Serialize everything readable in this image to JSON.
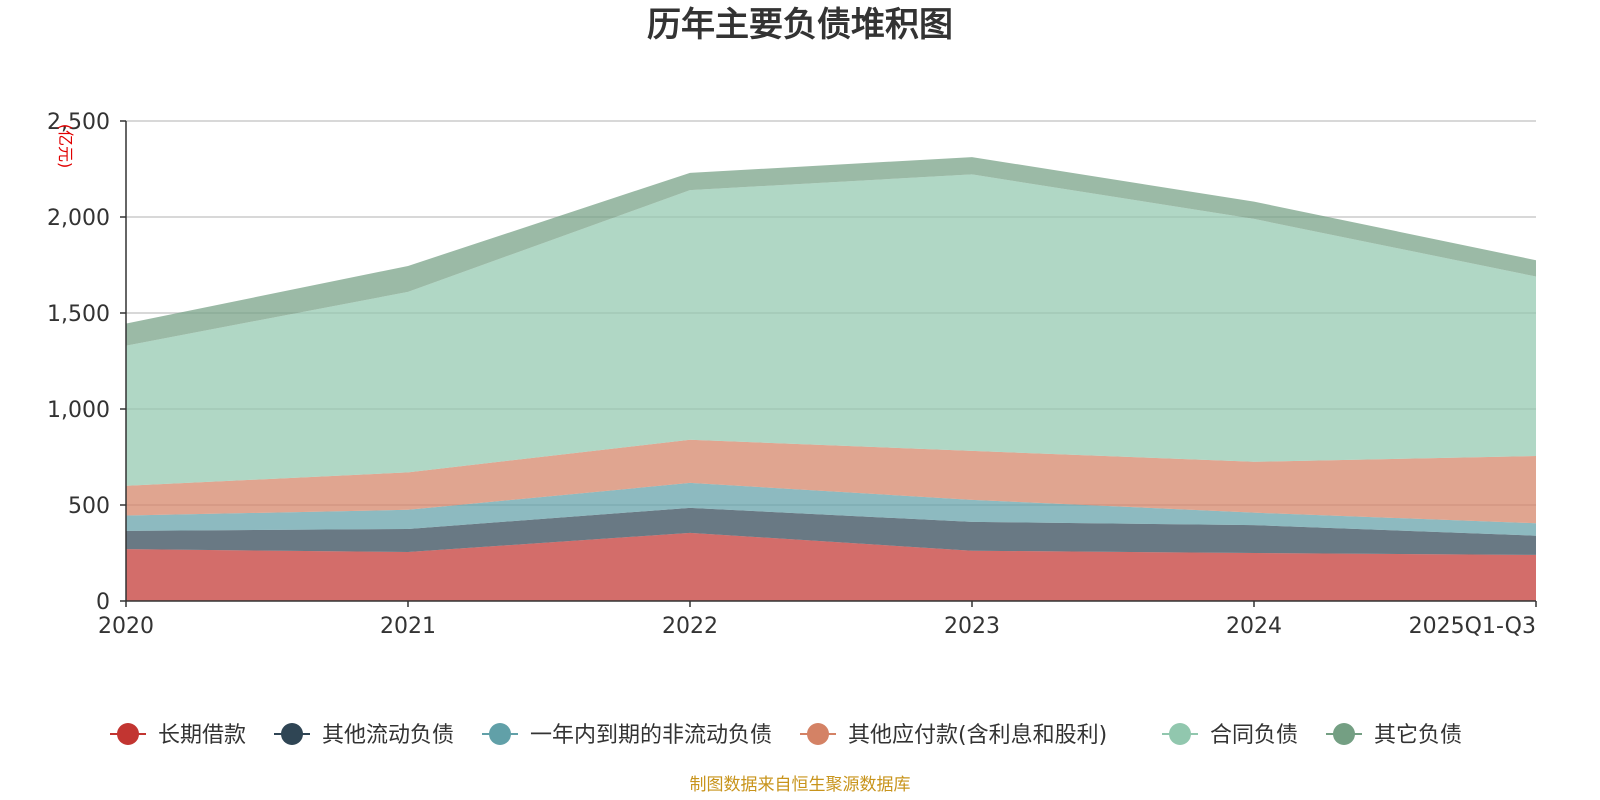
{
  "chart_data": {
    "type": "area",
    "stacked": true,
    "title": "历年主要负债堆积图",
    "unit_label": "(亿元)",
    "categories": [
      "2020",
      "2021",
      "2022",
      "2023",
      "2024",
      "2025Q1-Q3"
    ],
    "ylim": [
      0,
      2500
    ],
    "yticks": [
      0,
      500,
      1000,
      1500,
      2000,
      2500
    ],
    "ytick_labels": [
      "0",
      "500",
      "1,000",
      "1,500",
      "2,000",
      "2,500"
    ],
    "grid": true,
    "legend_position": "bottom",
    "series": [
      {
        "name": "长期借款",
        "color": "#c23531",
        "values": [
          270,
          255,
          355,
          262,
          250,
          240
        ]
      },
      {
        "name": "其他流动负债",
        "color": "#2f4554",
        "values": [
          95,
          120,
          130,
          150,
          145,
          100
        ]
      },
      {
        "name": "一年内到期的非流动负债",
        "color": "#61a0a8",
        "values": [
          80,
          100,
          130,
          115,
          65,
          65
        ]
      },
      {
        "name": "其他应付款(含利息和股利)",
        "color": "#d48265",
        "values": [
          155,
          195,
          225,
          255,
          265,
          350
        ]
      },
      {
        "name": "合同负债",
        "color": "#91c7ae",
        "values": [
          730,
          940,
          1300,
          1440,
          1265,
          935
        ]
      },
      {
        "name": "其它负债",
        "color": "#749f83",
        "values": [
          115,
          135,
          90,
          90,
          90,
          85
        ]
      }
    ]
  },
  "footer": {
    "source": "制图数据来自恒生聚源数据库"
  }
}
